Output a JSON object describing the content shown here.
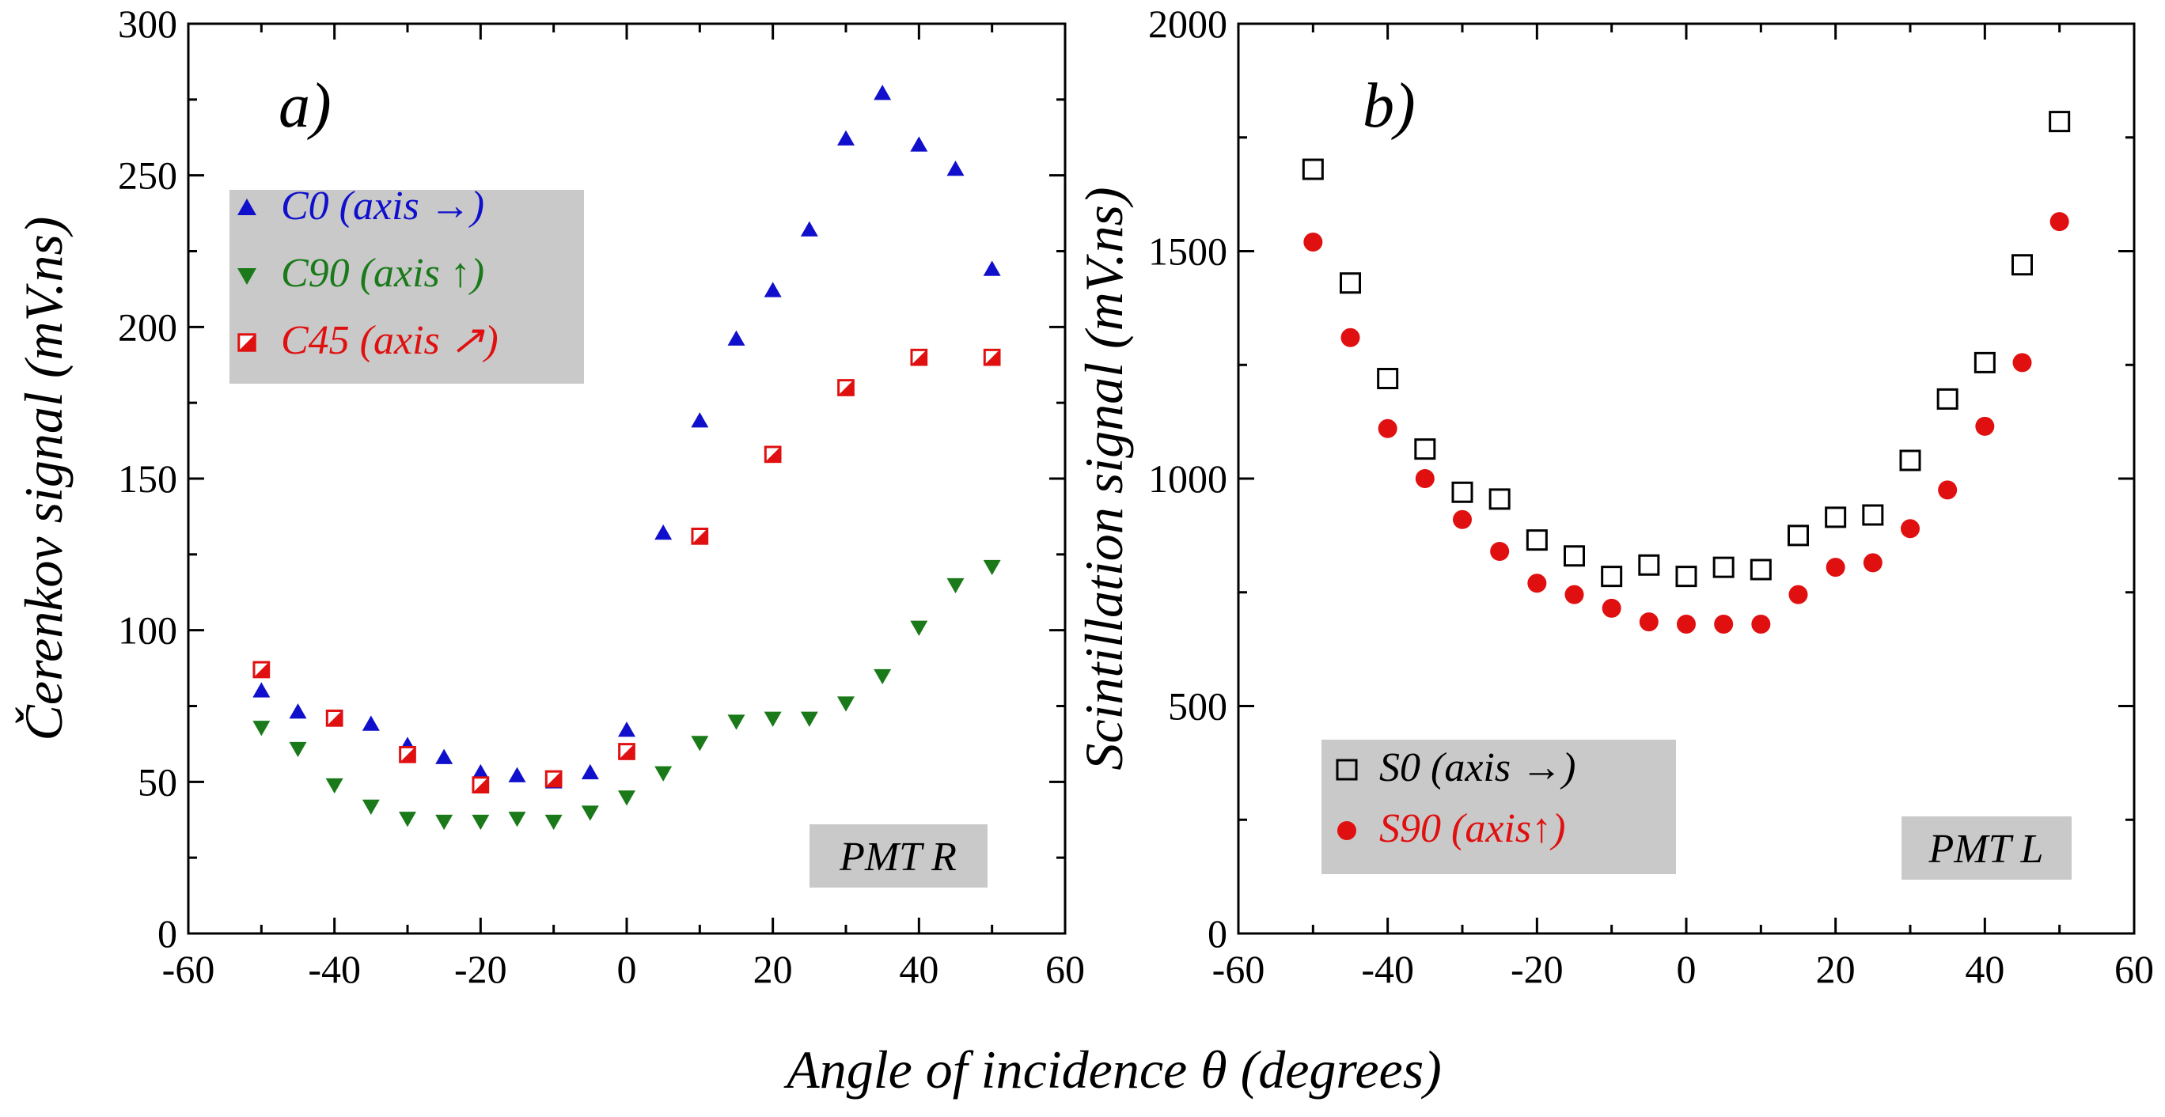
{
  "xlabel_shared": "Angle of incidence θ (degrees)",
  "chart_data": [
    {
      "type": "scatter",
      "panel_label": "a)",
      "ylabel": "Čerenkov signal (mV.ns)",
      "xlim": [
        -60,
        60
      ],
      "ylim": [
        0,
        300
      ],
      "xticks": [
        -60,
        -40,
        -20,
        0,
        20,
        40,
        60
      ],
      "yticks": [
        0,
        50,
        100,
        150,
        200,
        250,
        300
      ],
      "pmt_label": "PMT R",
      "legend_position": "top-left",
      "series": [
        {
          "name": "C0",
          "legend_text": "C0   (axis →)",
          "marker": "triangle-up",
          "color": "#1010cc",
          "x": [
            -50,
            -45,
            -40,
            -35,
            -30,
            -25,
            -20,
            -15,
            -10,
            -5,
            0,
            5,
            10,
            15,
            20,
            25,
            30,
            35,
            40,
            45,
            50
          ],
          "y": [
            80,
            73,
            71,
            69,
            62,
            58,
            53,
            52,
            50,
            53,
            67,
            132,
            169,
            196,
            212,
            232,
            262,
            277,
            260,
            252,
            219
          ]
        },
        {
          "name": "C90",
          "legend_text": "C90 (axis ↑)",
          "marker": "triangle-down",
          "color": "#1a7a1a",
          "x": [
            -50,
            -45,
            -40,
            -35,
            -30,
            -25,
            -20,
            -15,
            -10,
            -5,
            0,
            5,
            10,
            15,
            20,
            25,
            30,
            35,
            40,
            45,
            50
          ],
          "y": [
            68,
            61,
            49,
            42,
            38,
            37,
            37,
            38,
            37,
            40,
            45,
            53,
            63,
            70,
            71,
            71,
            76,
            85,
            101,
            115,
            121
          ]
        },
        {
          "name": "C45",
          "legend_text": "C45 (axis ↗)",
          "marker": "square-half",
          "color": "#e01010",
          "x": [
            -50,
            -40,
            -30,
            -20,
            -10,
            0,
            10,
            20,
            30,
            40,
            50
          ],
          "y": [
            87,
            71,
            59,
            49,
            51,
            60,
            131,
            158,
            180,
            190,
            190
          ]
        }
      ]
    },
    {
      "type": "scatter",
      "panel_label": "b)",
      "ylabel": "Scintillation signal (mV.ns)",
      "xlim": [
        -60,
        60
      ],
      "ylim": [
        0,
        2000
      ],
      "xticks": [
        -60,
        -40,
        -20,
        0,
        20,
        40,
        60
      ],
      "yticks": [
        0,
        500,
        1000,
        1500,
        2000
      ],
      "pmt_label": "PMT L",
      "legend_position": "bottom-left",
      "series": [
        {
          "name": "S0",
          "legend_text": "S0   (axis →)",
          "marker": "square-open",
          "color": "#000000",
          "x": [
            -50,
            -45,
            -40,
            -35,
            -30,
            -25,
            -20,
            -15,
            -10,
            -5,
            0,
            5,
            10,
            15,
            20,
            25,
            30,
            35,
            40,
            45,
            50
          ],
          "y": [
            1680,
            1430,
            1220,
            1065,
            970,
            955,
            865,
            830,
            785,
            810,
            785,
            805,
            800,
            875,
            915,
            920,
            1040,
            1175,
            1255,
            1470,
            1785
          ]
        },
        {
          "name": "S90",
          "legend_text": "S90 (axis↑)",
          "marker": "circle-filled",
          "color": "#e01010",
          "x": [
            -50,
            -45,
            -40,
            -35,
            -30,
            -25,
            -20,
            -15,
            -10,
            -5,
            0,
            5,
            10,
            15,
            20,
            25,
            30,
            35,
            40,
            45,
            50
          ],
          "y": [
            1520,
            1310,
            1110,
            1000,
            910,
            840,
            770,
            745,
            715,
            685,
            680,
            680,
            680,
            745,
            805,
            815,
            890,
            975,
            1115,
            1255,
            1565
          ]
        }
      ]
    }
  ]
}
